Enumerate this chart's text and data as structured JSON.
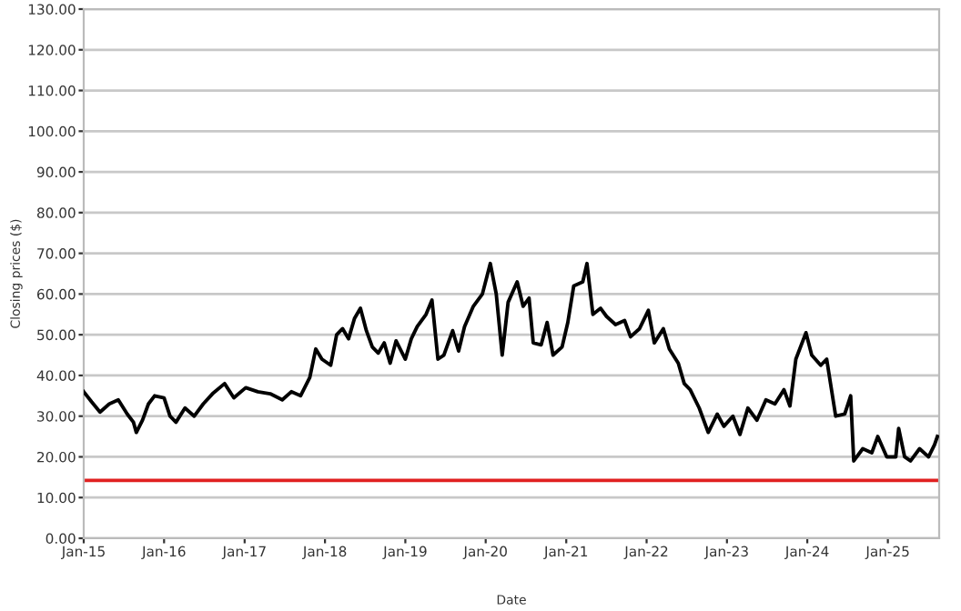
{
  "chart_data": {
    "type": "line",
    "xlabel": "Date",
    "ylabel": "Closing prices ($)",
    "x": [
      "2015-01-01",
      "2015-02-06",
      "2015-03-16",
      "2015-04-27",
      "2015-06-07",
      "2015-07-18",
      "2015-08-15",
      "2015-08-28",
      "2015-09-25",
      "2015-10-22",
      "2015-11-19",
      "2016-01-01",
      "2016-01-28",
      "2016-02-24",
      "2016-04-05",
      "2016-05-17",
      "2016-06-27",
      "2016-08-08",
      "2016-10-02",
      "2016-11-13",
      "2017-01-06",
      "2017-03-02",
      "2017-04-27",
      "2017-06-21",
      "2017-08-01",
      "2017-09-12",
      "2017-10-24",
      "2017-11-20",
      "2017-12-18",
      "2018-01-27",
      "2018-02-23",
      "2018-03-22",
      "2018-04-18",
      "2018-05-15",
      "2018-06-11",
      "2018-07-08",
      "2018-08-04",
      "2018-08-31",
      "2018-09-27",
      "2018-10-24",
      "2018-11-20",
      "2019-01-01",
      "2019-01-28",
      "2019-02-24",
      "2019-04-05",
      "2019-05-02",
      "2019-05-29",
      "2019-06-25",
      "2019-08-04",
      "2019-08-31",
      "2019-09-27",
      "2019-11-06",
      "2019-12-17",
      "2020-01-22",
      "2020-02-18",
      "2020-03-16",
      "2020-04-12",
      "2020-05-23",
      "2020-06-19",
      "2020-07-16",
      "2020-08-04",
      "2020-09-09",
      "2020-10-06",
      "2020-11-02",
      "2020-12-13",
      "2021-01-08",
      "2021-02-04",
      "2021-03-17",
      "2021-04-05",
      "2021-05-02",
      "2021-06-06",
      "2021-07-03",
      "2021-08-13",
      "2021-09-23",
      "2021-10-20",
      "2021-11-30",
      "2022-01-09",
      "2022-02-05",
      "2022-03-18",
      "2022-04-14",
      "2022-05-25",
      "2022-06-21",
      "2022-07-18",
      "2022-08-28",
      "2022-10-08",
      "2022-11-18",
      "2022-12-18",
      "2023-01-28",
      "2023-03-01",
      "2023-04-06",
      "2023-05-17",
      "2023-06-27",
      "2023-08-07",
      "2023-09-17",
      "2023-10-14",
      "2023-11-10",
      "2023-12-26",
      "2024-01-21",
      "2024-03-02",
      "2024-03-29",
      "2024-05-09",
      "2024-06-19",
      "2024-07-16",
      "2024-07-30",
      "2024-09-09",
      "2024-10-20",
      "2024-11-16",
      "2024-12-27",
      "2025-02-06",
      "2025-02-19",
      "2025-03-18",
      "2025-04-14",
      "2025-05-25",
      "2025-07-05",
      "2025-08-01",
      "2025-08-14"
    ],
    "series": [
      {
        "color": "#000000",
        "values": [
          36,
          33.5,
          31,
          33,
          34,
          30.5,
          28.5,
          26,
          29,
          33,
          35,
          34.5,
          30,
          28.5,
          32,
          30,
          33,
          35.5,
          38,
          34.5,
          37,
          36,
          35.5,
          34,
          36,
          35,
          39.5,
          46.5,
          44,
          42.5,
          50,
          51.5,
          49,
          54,
          56.5,
          51,
          47,
          45.5,
          48,
          43,
          48.5,
          44,
          49,
          52,
          55,
          58.5,
          44,
          45,
          51,
          46,
          52,
          57,
          60,
          67.5,
          60,
          45,
          58,
          63,
          57,
          59,
          48,
          47.5,
          53,
          45,
          47,
          53,
          62,
          63,
          67.5,
          55,
          56.5,
          54.5,
          52.5,
          53.5,
          49.5,
          51.5,
          56,
          48,
          51.5,
          46.5,
          43,
          38,
          36.5,
          32,
          26,
          30.5,
          27.5,
          30,
          25.5,
          32,
          29,
          34,
          33,
          36.5,
          32.5,
          44,
          50.5,
          45,
          42.5,
          44,
          30,
          30.5,
          35,
          19,
          22,
          21,
          25,
          20,
          20,
          27,
          20,
          19,
          22,
          20,
          23,
          25
        ]
      }
    ],
    "xlim": [
      "2015-01-01",
      "2025-08-22"
    ],
    "xticks": [
      {
        "value": "2015-01-01",
        "label": "Jan-15"
      },
      {
        "value": "2016-01-01",
        "label": "Jan-16"
      },
      {
        "value": "2017-01-01",
        "label": "Jan-17"
      },
      {
        "value": "2018-01-01",
        "label": "Jan-18"
      },
      {
        "value": "2019-01-01",
        "label": "Jan-19"
      },
      {
        "value": "2020-01-01",
        "label": "Jan-20"
      },
      {
        "value": "2021-01-01",
        "label": "Jan-21"
      },
      {
        "value": "2022-01-01",
        "label": "Jan-22"
      },
      {
        "value": "2023-01-01",
        "label": "Jan-23"
      },
      {
        "value": "2024-01-01",
        "label": "Jan-24"
      },
      {
        "value": "2025-01-01",
        "label": "Jan-25"
      }
    ],
    "ylim": [
      0,
      130
    ],
    "yticks": [
      {
        "value": 0,
        "label": "0.00"
      },
      {
        "value": 10,
        "label": "10.00"
      },
      {
        "value": 20,
        "label": "20.00"
      },
      {
        "value": 30,
        "label": "30.00"
      },
      {
        "value": 40,
        "label": "40.00"
      },
      {
        "value": 50,
        "label": "50.00"
      },
      {
        "value": 60,
        "label": "60.00"
      },
      {
        "value": 70,
        "label": "70.00"
      },
      {
        "value": 80,
        "label": "80.00"
      },
      {
        "value": 90,
        "label": "90.00"
      },
      {
        "value": 100,
        "label": "100.00"
      },
      {
        "value": 110,
        "label": "110.00"
      },
      {
        "value": 120,
        "label": "120.00"
      },
      {
        "value": 130,
        "label": "130.00"
      }
    ],
    "ref_lines": [
      {
        "axis": "y",
        "value": 14.2,
        "color": "#e02020"
      }
    ],
    "grid": "y",
    "legend": false,
    "marker": "none",
    "line_style": "solid"
  }
}
